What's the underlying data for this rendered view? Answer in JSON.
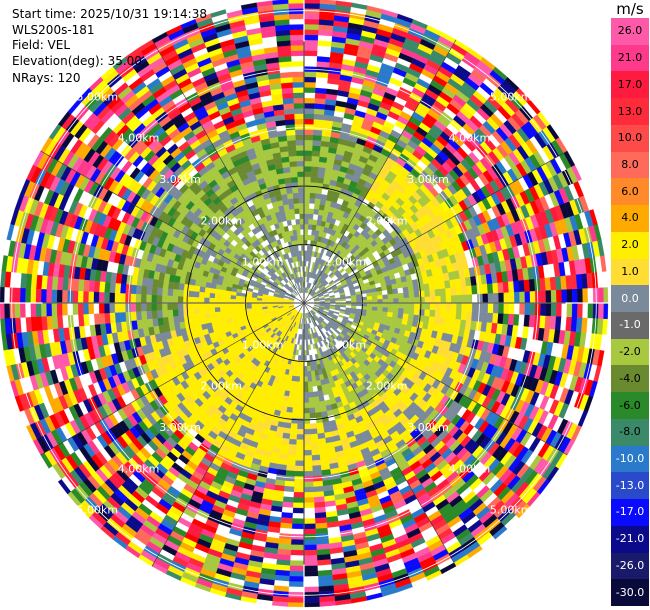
{
  "header": {
    "start_time": "Start time: 2025/10/31 19:14:38",
    "instrument": "WLS200s-181",
    "field": "Field: VEL",
    "elevation": "Elevation(deg): 35.00",
    "nrays": "NRays: 120"
  },
  "chart_data": {
    "type": "ppi_polar",
    "nrays": 120,
    "range_max_km": 5.2,
    "ring_labels": [
      "1.00km",
      "2.00km",
      "3.00km",
      "4.00km",
      "5.00km"
    ],
    "ring_km": [
      1,
      2,
      3,
      4,
      5
    ],
    "spokes": 12,
    "colorbar": {
      "units": "m/s",
      "levels": [
        "26.0",
        "21.0",
        "17.0",
        "13.0",
        "10.0",
        "8.0",
        "6.0",
        "4.0",
        "2.0",
        "1.0",
        "0.0",
        "-1.0",
        "-2.0",
        "-4.0",
        "-6.0",
        "-8.0",
        "-10.0",
        "-13.0",
        "-17.0",
        "-21.0",
        "-26.0",
        "-30.0"
      ],
      "colors": [
        "#ff5aaa",
        "#ff3a8c",
        "#ff1a40",
        "#ff2a3a",
        "#ff4a4a",
        "#ff6a5a",
        "#ff8a2a",
        "#ffaa00",
        "#ffee00",
        "#ffdd33",
        "#7a8a9a",
        "#6a6a6a",
        "#a8c840",
        "#6a8a30",
        "#2a8a2a",
        "#3a8a6a",
        "#2a7acc",
        "#2a4acc",
        "#0a0aff",
        "#0a0a8a",
        "#1a1a6a",
        "#0a0a3a"
      ]
    }
  }
}
